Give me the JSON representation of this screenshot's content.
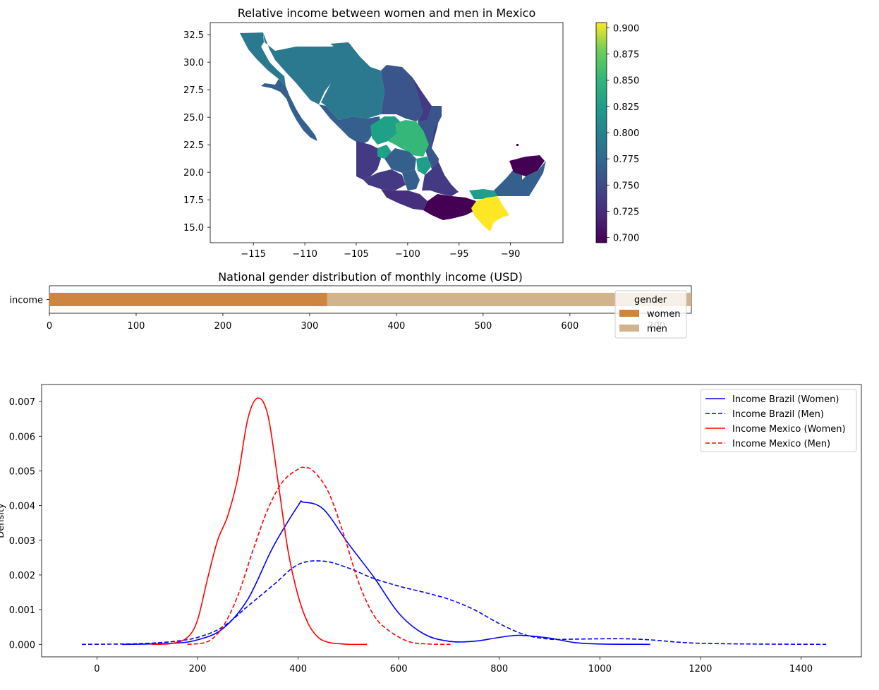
{
  "chart_data": [
    {
      "type": "heatmap",
      "title": "Relative income between women and men in Mexico",
      "x_ticks": [
        "−115",
        "−110",
        "−105",
        "−100",
        "−95",
        "−90"
      ],
      "x_tick_values": [
        -115,
        -110,
        -105,
        -100,
        -95,
        -90
      ],
      "y_ticks": [
        "15.0",
        "17.5",
        "20.0",
        "22.5",
        "25.0",
        "27.5",
        "30.0",
        "32.5"
      ],
      "y_tick_values": [
        15.0,
        17.5,
        20.0,
        22.5,
        25.0,
        27.5,
        30.0,
        32.5
      ],
      "xlim": [
        -119.2,
        -84.9
      ],
      "ylim": [
        13.6,
        33.6
      ],
      "colorbar": {
        "colormap": "viridis",
        "range": [
          0.695,
          0.905
        ],
        "ticks": [
          "0.700",
          "0.725",
          "0.750",
          "0.775",
          "0.800",
          "0.825",
          "0.850",
          "0.875",
          "0.900"
        ],
        "tick_values": [
          0.7,
          0.725,
          0.75,
          0.775,
          0.8,
          0.825,
          0.85,
          0.875,
          0.9
        ]
      },
      "regions": [
        {
          "value": 0.775,
          "color": "#2b798e"
        },
        {
          "value": 0.755,
          "color": "#35608d"
        },
        {
          "value": 0.745,
          "color": "#3a548c"
        },
        {
          "value": 0.82,
          "color": "#1fa187"
        },
        {
          "value": 0.845,
          "color": "#35b779"
        },
        {
          "value": 0.735,
          "color": "#443983"
        },
        {
          "value": 0.72,
          "color": "#46307e"
        },
        {
          "value": 0.7,
          "color": "#440154"
        },
        {
          "value": 0.9,
          "color": "#fde725"
        },
        {
          "value": 0.81,
          "color": "#1f9e89"
        }
      ]
    },
    {
      "type": "bar",
      "title": "National gender distribution of monthly income (USD)",
      "orientation": "horizontal-stacked",
      "categories": [
        "income"
      ],
      "series": [
        {
          "name": "women",
          "values": [
            320
          ],
          "color": "#cd853f"
        },
        {
          "name": "men",
          "values": [
            420
          ],
          "color": "#d2b48c"
        }
      ],
      "xlim": [
        0,
        740
      ],
      "x_ticks": [
        "0",
        "100",
        "200",
        "300",
        "400",
        "500",
        "600",
        "700"
      ],
      "x_tick_values": [
        0,
        100,
        200,
        300,
        400,
        500,
        600,
        700
      ],
      "legend": {
        "title": "gender",
        "placement": "right"
      }
    },
    {
      "type": "line",
      "title": "",
      "ylabel": "Density",
      "xlim": [
        -110,
        1520
      ],
      "ylim": [
        -0.00036,
        0.00749
      ],
      "x_ticks": [
        "0",
        "200",
        "400",
        "600",
        "800",
        "1000",
        "1200",
        "1400"
      ],
      "x_tick_values": [
        0,
        200,
        400,
        600,
        800,
        1000,
        1200,
        1400
      ],
      "y_ticks": [
        "0.000",
        "0.001",
        "0.002",
        "0.003",
        "0.004",
        "0.005",
        "0.006",
        "0.007"
      ],
      "y_tick_values": [
        0,
        0.001,
        0.002,
        0.003,
        0.004,
        0.005,
        0.006,
        0.007
      ],
      "legend_placement": "top-right",
      "series": [
        {
          "name": "Income Brazil (Women)",
          "color": "#0000ff",
          "dash": false,
          "x": [
            50,
            150,
            200,
            250,
            300,
            350,
            400,
            410,
            450,
            500,
            550,
            600,
            650,
            700,
            750,
            800,
            840,
            900,
            950,
            1000,
            1100
          ],
          "y": [
            0,
            3e-05,
            0.00013,
            0.00045,
            0.0013,
            0.0028,
            0.004,
            0.0041,
            0.0039,
            0.0029,
            0.00195,
            0.0009,
            0.0003,
            9e-05,
            9e-05,
            0.0002,
            0.00026,
            0.00018,
            5e-05,
            1e-05,
            0
          ]
        },
        {
          "name": "Income Brazil (Men)",
          "color": "#0000ff",
          "dash": true,
          "x": [
            -30,
            50,
            100,
            150,
            200,
            250,
            300,
            350,
            400,
            450,
            500,
            550,
            600,
            650,
            700,
            750,
            800,
            850,
            900,
            950,
            1000,
            1050,
            1100,
            1150,
            1200,
            1300,
            1450
          ],
          "y": [
            0,
            1e-05,
            3e-05,
            8e-05,
            0.0002,
            0.0005,
            0.0011,
            0.0017,
            0.0023,
            0.0024,
            0.0022,
            0.0019,
            0.00168,
            0.0015,
            0.0013,
            0.001,
            0.0006,
            0.00028,
            0.00015,
            0.00015,
            0.00016,
            0.00016,
            0.00013,
            7e-05,
            3e-05,
            1e-05,
            0
          ]
        },
        {
          "name": "Income Mexico (Women)",
          "color": "#ff0000",
          "dash": false,
          "x": [
            110,
            150,
            180,
            200,
            220,
            240,
            260,
            280,
            300,
            320,
            340,
            360,
            380,
            400,
            420,
            440,
            460,
            480,
            500,
            537
          ],
          "y": [
            0,
            3e-05,
            0.0002,
            0.0007,
            0.0019,
            0.003,
            0.0037,
            0.0048,
            0.0065,
            0.0071,
            0.0066,
            0.0047,
            0.0027,
            0.0014,
            0.0006,
            0.0002,
            6e-05,
            2e-05,
            0,
            0
          ]
        },
        {
          "name": "Income Mexico (Men)",
          "color": "#ff0000",
          "dash": true,
          "x": [
            180,
            220,
            250,
            280,
            310,
            340,
            370,
            400,
            412,
            430,
            460,
            490,
            520,
            550,
            580,
            620,
            660,
            703
          ],
          "y": [
            0,
            8e-05,
            0.0005,
            0.0014,
            0.0027,
            0.0039,
            0.0047,
            0.00505,
            0.0051,
            0.005,
            0.0044,
            0.0032,
            0.0018,
            0.00085,
            0.0004,
            8e-05,
            1e-05,
            0
          ]
        }
      ]
    }
  ]
}
